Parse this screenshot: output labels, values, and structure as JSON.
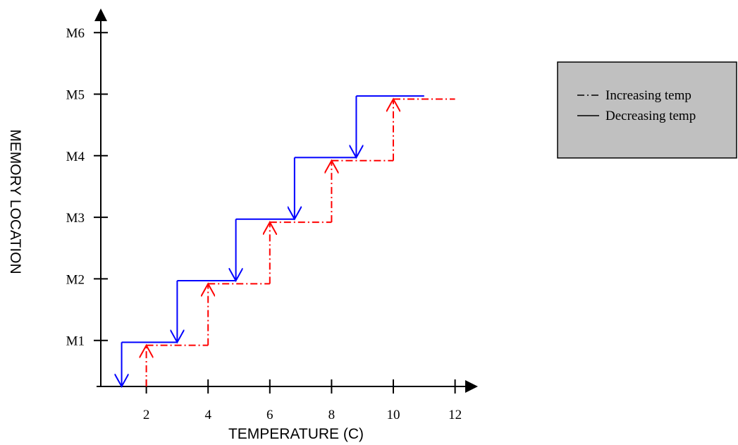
{
  "chart_data": {
    "type": "line",
    "xlabel": "TEMPERATURE  (C)",
    "ylabel": "MEMORY LOCATION",
    "xlim": [
      0,
      12
    ],
    "x_ticks": [
      2,
      4,
      6,
      8,
      10,
      12
    ],
    "y_categories": [
      "M1",
      "M2",
      "M3",
      "M4",
      "M5",
      "M6"
    ],
    "grid": false,
    "legend_position": "top-right",
    "series": [
      {
        "name": "Increasing temp",
        "style": "dash-dot",
        "color": "#ff0000",
        "x": [
          2,
          2,
          4,
          4,
          6,
          6,
          8,
          8,
          10,
          10,
          12
        ],
        "y": [
          0,
          0.92,
          0.92,
          1.92,
          1.92,
          2.92,
          2.92,
          3.92,
          3.92,
          4.92,
          4.92
        ]
      },
      {
        "name": "Decreasing temp",
        "style": "solid",
        "color": "#0000ff",
        "x": [
          11,
          8.8,
          8.8,
          6.8,
          6.8,
          4.9,
          4.9,
          3.0,
          3.0,
          1.2,
          1.2
        ],
        "y": [
          4.97,
          4.97,
          3.97,
          3.97,
          2.97,
          2.97,
          1.97,
          1.97,
          0.97,
          0.97,
          0
        ]
      }
    ],
    "legend": {
      "items": [
        "Increasing temp",
        "Decreasing temp"
      ],
      "background": "#c0c0c0"
    }
  }
}
